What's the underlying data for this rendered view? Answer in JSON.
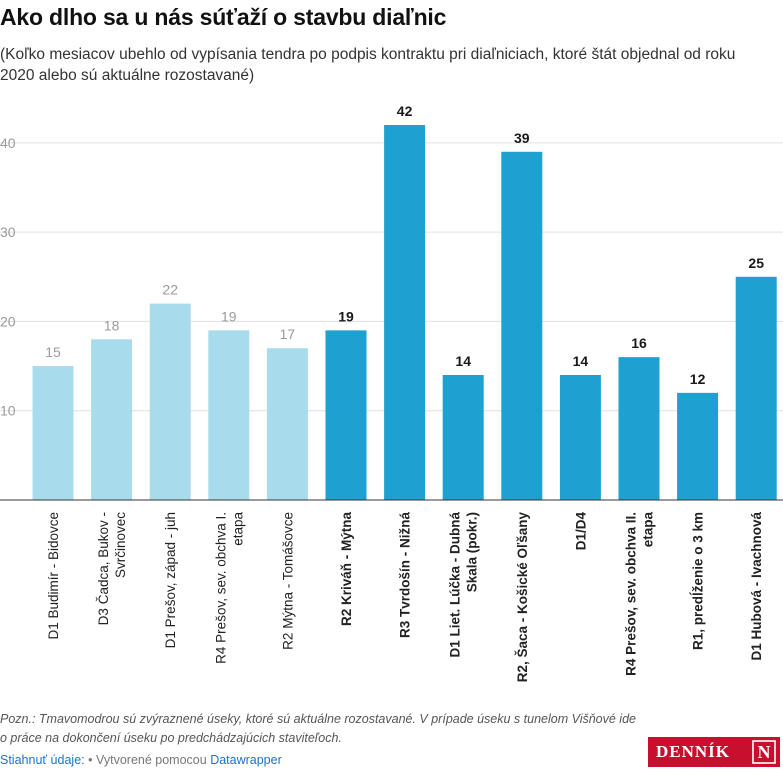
{
  "header": {
    "title": "Ako dlho sa u nás súťaží o stavbu diaľnic",
    "subtitle": "(Koľko mesiacov ubehlo od vypísania tendra po podpis kontraktu pri diaľniciach, ktoré štát objednal od roku 2020 alebo sú aktuálne rozostavané)"
  },
  "chart_data": {
    "type": "bar",
    "categories": [
      "D1 Budimír - Bidovce",
      "D3 Čadca, Bukov - Svrčinovec",
      "D1 Prešov, západ - juh",
      "R4 Prešov, sev. obchva I. etapa",
      "R2 Mýtna - Tomášovce",
      "R2 Kriváň - Mýtna",
      "R3 Tvrdošín - Nižná",
      "D1 Liet. Lúčka - Dubná Skala (pokr.)",
      "R2, Šaca - Košické Oľšany",
      "D1/D4",
      "R4 Prešov, sev. obchva II. etapa",
      "R1, predĺženie o 3 km",
      "D1 Hubová - Ivachnová"
    ],
    "category_lines": [
      [
        "D1 Budimír - Bidovce"
      ],
      [
        "D3 Čadca, Bukov -",
        "Svrčinovec"
      ],
      [
        "D1 Prešov, západ - juh"
      ],
      [
        "R4 Prešov, sev. obchva I.",
        "etapa"
      ],
      [
        "R2 Mýtna - Tomášovce"
      ],
      [
        "R2 Kriváň - Mýtna"
      ],
      [
        "R3 Tvrdošín - Nižná"
      ],
      [
        "D1 Liet. Lúčka - Dubná",
        "Skala (pokr.)"
      ],
      [
        "R2, Šaca - Košické Oľšany"
      ],
      [
        "D1/D4"
      ],
      [
        "R4 Prešov, sev. obchva II.",
        "etapa"
      ],
      [
        "R1, predĺženie o 3 km"
      ],
      [
        "D1 Hubová - Ivachnová"
      ]
    ],
    "values": [
      15,
      18,
      22,
      19,
      17,
      19,
      42,
      14,
      39,
      14,
      16,
      12,
      25
    ],
    "highlighted": [
      false,
      false,
      false,
      false,
      false,
      true,
      true,
      true,
      true,
      true,
      true,
      true,
      true
    ],
    "ylim": [
      0,
      42
    ],
    "yticks": [
      10,
      20,
      30,
      40
    ],
    "grid": true,
    "colors": {
      "highlight": "#1ea0d0",
      "normal": "#a8dcec",
      "grid": "#e0e0e0",
      "axis": "#333333",
      "tick_label": "#9a9a9a",
      "value_label_normal": "#9a9a9a",
      "value_label_highlight": "#1a1a1a"
    }
  },
  "note": "Pozn.: Tmavomodrou sú zvýraznené úseky, ktoré sú aktuálne rozostavané. V prípade úseku s tunelom Višňové ide o práce na dokončení úseku po predchádzajúcich staviteľoch.",
  "footer": {
    "download_label": "Stiahnuť údaje:",
    "separator": "•",
    "created_with": "Vytvorené pomocou",
    "tool_label": "Datawrapper"
  },
  "logo": {
    "text": "DENNÍK",
    "mark": "N",
    "color": "#c8102e"
  }
}
